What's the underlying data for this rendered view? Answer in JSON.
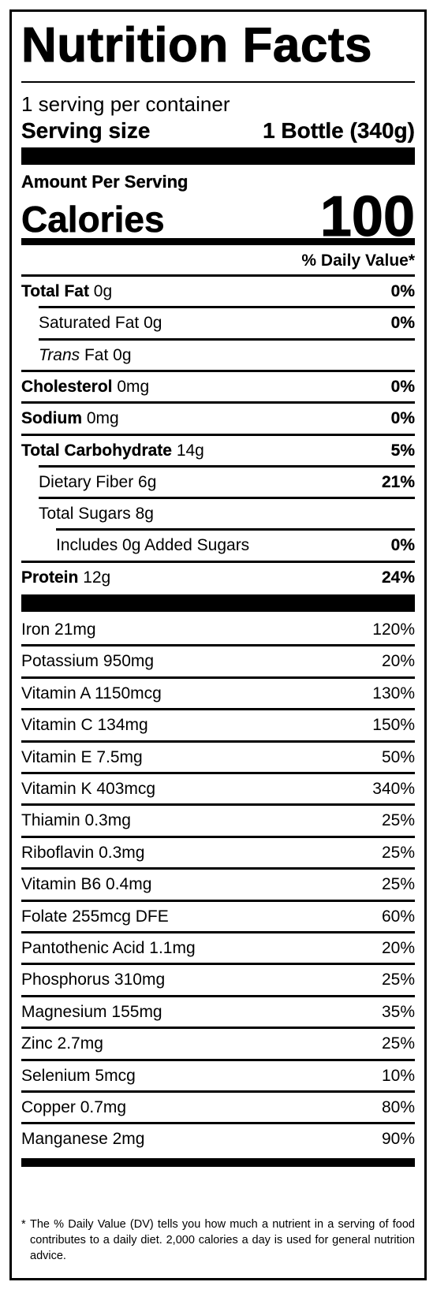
{
  "title": "Nutrition Facts",
  "servings_per_container": "1 serving per container",
  "serving_size": {
    "label": "Serving size",
    "value": "1 Bottle (340g)"
  },
  "amount_per_serving": "Amount Per Serving",
  "calories": {
    "label": "Calories",
    "value": "100"
  },
  "daily_value_header": "% Daily Value*",
  "nutrients": [
    {
      "name": "Total Fat",
      "amount": "0g",
      "dv": "0%",
      "bold": true,
      "indent": 0
    },
    {
      "name": "Saturated Fat",
      "amount": "0g",
      "dv": "0%",
      "bold": false,
      "indent": 1
    },
    {
      "name": "Trans",
      "name_suffix": "Fat",
      "amount": "0g",
      "dv": "",
      "bold": false,
      "indent": 1,
      "italic_name": true
    },
    {
      "name": "Cholesterol",
      "amount": "0mg",
      "dv": "0%",
      "bold": true,
      "indent": 0
    },
    {
      "name": "Sodium",
      "amount": "0mg",
      "dv": "0%",
      "bold": true,
      "indent": 0
    },
    {
      "name": "Total Carbohydrate",
      "amount": "14g",
      "dv": "5%",
      "bold": true,
      "indent": 0
    },
    {
      "name": "Dietary Fiber",
      "amount": "6g",
      "dv": "21%",
      "bold": false,
      "indent": 1
    },
    {
      "name": "Total Sugars",
      "amount": "8g",
      "dv": "",
      "bold": false,
      "indent": 1
    },
    {
      "name": "Includes 0g Added Sugars",
      "amount": "",
      "dv": "0%",
      "bold": false,
      "indent": 2
    },
    {
      "name": "Protein",
      "amount": "12g",
      "dv": "24%",
      "bold": true,
      "indent": 0
    }
  ],
  "vitamins": [
    {
      "name": "Iron",
      "amount": "21mg",
      "dv": "120%"
    },
    {
      "name": "Potassium",
      "amount": "950mg",
      "dv": "20%"
    },
    {
      "name": "Vitamin A",
      "amount": "1150mcg",
      "dv": "130%"
    },
    {
      "name": "Vitamin C",
      "amount": "134mg",
      "dv": "150%"
    },
    {
      "name": "Vitamin E",
      "amount": "7.5mg",
      "dv": "50%"
    },
    {
      "name": "Vitamin K",
      "amount": "403mcg",
      "dv": "340%"
    },
    {
      "name": "Thiamin",
      "amount": "0.3mg",
      "dv": "25%"
    },
    {
      "name": "Riboflavin",
      "amount": "0.3mg",
      "dv": "25%"
    },
    {
      "name": "Vitamin B6",
      "amount": "0.4mg",
      "dv": "25%"
    },
    {
      "name": "Folate",
      "amount": "255mcg DFE",
      "dv": "60%"
    },
    {
      "name": "Pantothenic Acid",
      "amount": "1.1mg",
      "dv": "20%"
    },
    {
      "name": "Phosphorus",
      "amount": "310mg",
      "dv": "25%"
    },
    {
      "name": "Magnesium",
      "amount": "155mg",
      "dv": "35%"
    },
    {
      "name": "Zinc",
      "amount": "2.7mg",
      "dv": "25%"
    },
    {
      "name": "Selenium",
      "amount": "5mcg",
      "dv": "10%"
    },
    {
      "name": "Copper",
      "amount": "0.7mg",
      "dv": "80%"
    },
    {
      "name": "Manganese",
      "amount": "2mg",
      "dv": "90%"
    }
  ],
  "footnote": {
    "marker": "*",
    "text": "The % Daily Value (DV) tells you how much a nutrient in a serving of food contributes to a daily diet. 2,000 calories a day is used for general nutrition advice."
  }
}
